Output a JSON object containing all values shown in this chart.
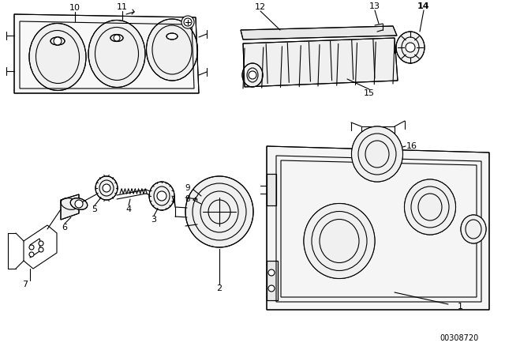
{
  "bg_color": "#ffffff",
  "line_color": "#000000",
  "part_number": "00308720",
  "figsize": [
    6.4,
    4.48
  ],
  "dpi": 100,
  "lw": 0.8
}
